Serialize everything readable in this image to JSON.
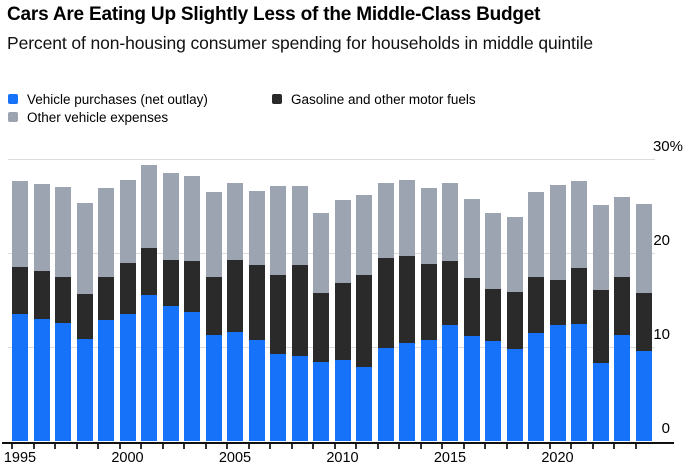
{
  "header": {
    "title": "Cars Are Eating Up Slightly Less of the Middle-Class Budget",
    "subtitle": "Percent of non-housing consumer spending for households in middle quintile"
  },
  "legend": {
    "items": [
      {
        "key": "vehicle-purchases",
        "label": "Vehicle purchases (net outlay)",
        "color": "#1673f9"
      },
      {
        "key": "gasoline",
        "label": "Gasoline and other motor fuels",
        "color": "#2a2a2a"
      },
      {
        "key": "other-expenses",
        "label": "Other vehicle expenses",
        "color": "#9ba4b0"
      }
    ]
  },
  "colors": {
    "blue": "#1673f9",
    "black": "#2a2a2a",
    "gray": "#9ba4b0",
    "gridline": "#dcdcdc",
    "axis": "#111111",
    "background": "#ffffff"
  },
  "chart_data": {
    "type": "bar",
    "stacked": true,
    "title": "Cars Are Eating Up Slightly Less of the Middle-Class Budget",
    "subtitle": "Percent of non-housing consumer spending for households in middle quintile",
    "x": [
      1995,
      1996,
      1997,
      1998,
      1999,
      2000,
      2001,
      2002,
      2003,
      2004,
      2005,
      2006,
      2007,
      2008,
      2009,
      2010,
      2011,
      2012,
      2013,
      2014,
      2015,
      2016,
      2017,
      2018,
      2019,
      2020,
      2021,
      2022,
      2023,
      2024
    ],
    "series": [
      {
        "name": "Vehicle purchases (net outlay)",
        "color": "#1673f9",
        "values": [
          13.5,
          13.0,
          12.6,
          10.9,
          12.9,
          13.5,
          15.5,
          14.4,
          13.7,
          11.3,
          11.6,
          10.7,
          9.3,
          9.0,
          8.4,
          8.6,
          7.9,
          9.9,
          10.4,
          10.7,
          12.3,
          11.2,
          10.6,
          9.8,
          11.5,
          12.3,
          12.4,
          8.3,
          11.3,
          9.6
        ]
      },
      {
        "name": "Gasoline and other motor fuels",
        "color": "#2a2a2a",
        "values": [
          5.0,
          5.1,
          4.9,
          4.7,
          4.5,
          5.4,
          5.0,
          4.9,
          5.4,
          6.2,
          7.7,
          8.0,
          8.4,
          9.7,
          7.4,
          8.2,
          9.8,
          9.6,
          9.3,
          8.1,
          6.9,
          6.1,
          5.6,
          6.1,
          5.9,
          4.8,
          6.0,
          7.8,
          6.2,
          6.1
        ]
      },
      {
        "name": "Other vehicle expenses",
        "color": "#9ba4b0",
        "values": [
          9.2,
          9.2,
          9.5,
          9.7,
          9.5,
          8.9,
          8.9,
          9.2,
          9.1,
          9.0,
          8.2,
          7.9,
          9.4,
          8.4,
          8.5,
          8.8,
          8.5,
          8.0,
          8.1,
          8.1,
          8.3,
          8.4,
          8.1,
          7.9,
          9.1,
          10.1,
          9.3,
          9.0,
          8.5,
          9.5
        ]
      }
    ],
    "ylim": [
      0,
      30
    ],
    "y_ticks": [
      {
        "value": 0,
        "label": "0"
      },
      {
        "value": 10,
        "label": "10"
      },
      {
        "value": 20,
        "label": "20"
      },
      {
        "value": 30,
        "label": "30%"
      }
    ],
    "x_tick_labels": [
      "1995",
      "2000",
      "2005",
      "2010",
      "2015",
      "2020"
    ],
    "grid": "horizontal",
    "legend_position": "top-left"
  }
}
